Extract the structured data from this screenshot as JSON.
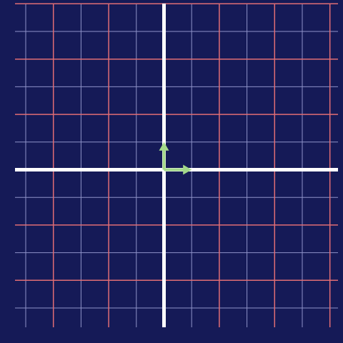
{
  "canvas": {
    "background_color": "#151a57"
  },
  "grid": {
    "x_range": [
      -8,
      10
    ],
    "y_range": [
      -9,
      9
    ],
    "minor_step": 1,
    "major_step": 2,
    "minor_color": "#8e92c8",
    "major_color": "#e06d74"
  },
  "axes": {
    "color": "#ffffff",
    "origin": [
      0,
      0
    ]
  },
  "basis_vectors": {
    "color": "#a3d88a",
    "vectors": [
      {
        "name": "i-hat",
        "dx": 1,
        "dy": 0
      },
      {
        "name": "j-hat",
        "dx": 0,
        "dy": 1
      }
    ]
  }
}
